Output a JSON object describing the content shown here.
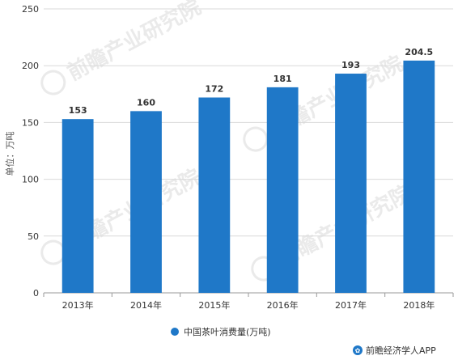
{
  "chart_data": {
    "type": "bar",
    "categories": [
      "2013年",
      "2014年",
      "2015年",
      "2016年",
      "2017年",
      "2018年"
    ],
    "values": [
      153,
      160,
      172,
      181,
      193,
      204.5
    ],
    "data_labels": [
      "153",
      "160",
      "172",
      "181",
      "193",
      "204.5"
    ],
    "ylabel": "单位：万吨",
    "ylim": [
      0,
      250
    ],
    "yticks": [
      0,
      50,
      100,
      150,
      200,
      250
    ],
    "grid": true,
    "legend_position": "bottom-center",
    "series": [
      {
        "name": "中国茶叶消费量(万吨)",
        "color": "#1f78c8"
      }
    ]
  },
  "watermark": "前瞻产业研究院",
  "credit": "前瞻经济学人APP",
  "colors": {
    "bar": "#1f78c8",
    "grid": "#d9d9d9",
    "axis": "#999999"
  }
}
